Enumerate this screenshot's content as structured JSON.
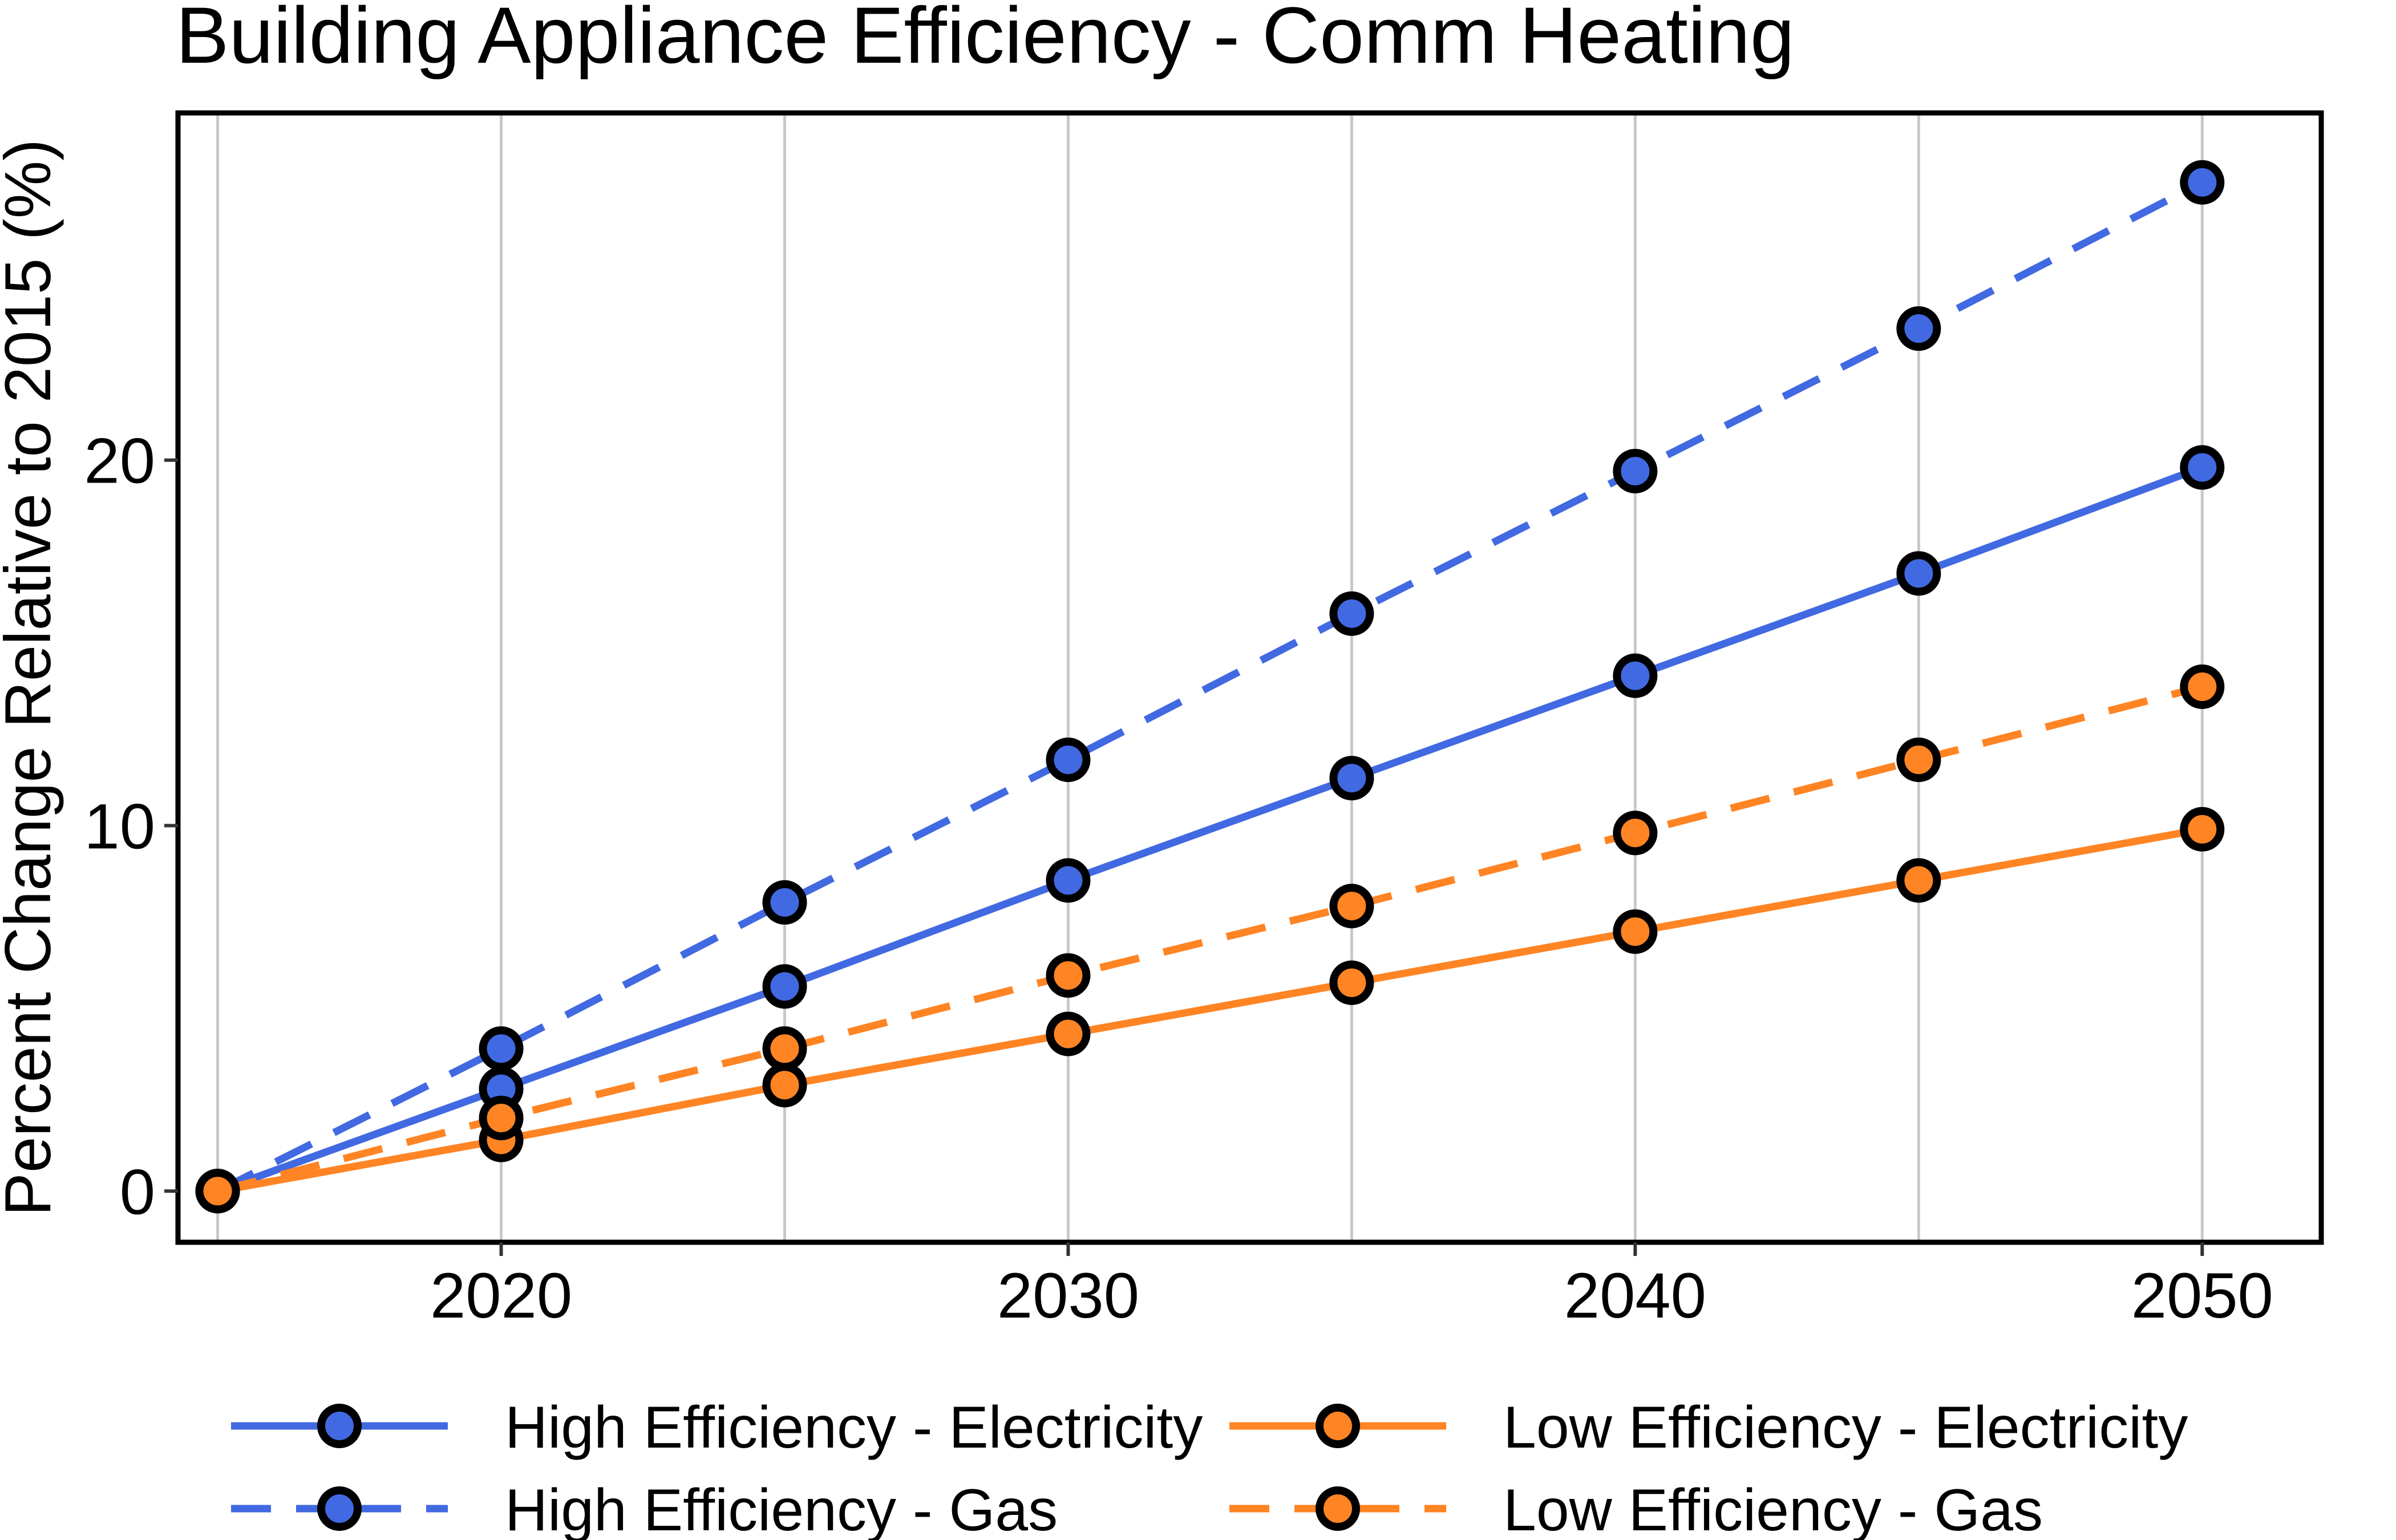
{
  "chart_data": {
    "type": "line",
    "title": "Building Appliance Efficiency - Comm Heating",
    "xlabel": "",
    "ylabel": "Percent Change Relative to 2015 (%)",
    "xlim": [
      2014.3,
      2052.1
    ],
    "ylim": [
      -1.4,
      29.5
    ],
    "x_ticks": [
      2020,
      2030,
      2040,
      2050
    ],
    "x_minor": [
      2015,
      2025,
      2035,
      2045
    ],
    "y_ticks": [
      0,
      10,
      20
    ],
    "grid": "vertical",
    "legend_position": "bottom",
    "x": [
      2015,
      2020,
      2025,
      2030,
      2035,
      2040,
      2045,
      2050
    ],
    "series": [
      {
        "name": "High Efficiency - Electricity",
        "color": "#4169E1",
        "dash": "solid",
        "values": [
          0,
          2.8,
          5.6,
          8.5,
          11.3,
          14.1,
          16.9,
          19.8
        ]
      },
      {
        "name": "High Efficiency - Gas",
        "color": "#4169E1",
        "dash": "dashed",
        "values": [
          0,
          3.9,
          7.9,
          11.8,
          15.8,
          19.7,
          23.6,
          27.6
        ]
      },
      {
        "name": "Low Efficiency - Electricity",
        "color": "#FF8424",
        "dash": "solid",
        "values": [
          0,
          1.4,
          2.9,
          4.3,
          5.7,
          7.1,
          8.5,
          9.9
        ]
      },
      {
        "name": "Low Efficiency - Gas",
        "color": "#FF8424",
        "dash": "dashed",
        "values": [
          0,
          2.0,
          3.9,
          5.9,
          7.8,
          9.8,
          11.8,
          13.8
        ]
      }
    ]
  }
}
